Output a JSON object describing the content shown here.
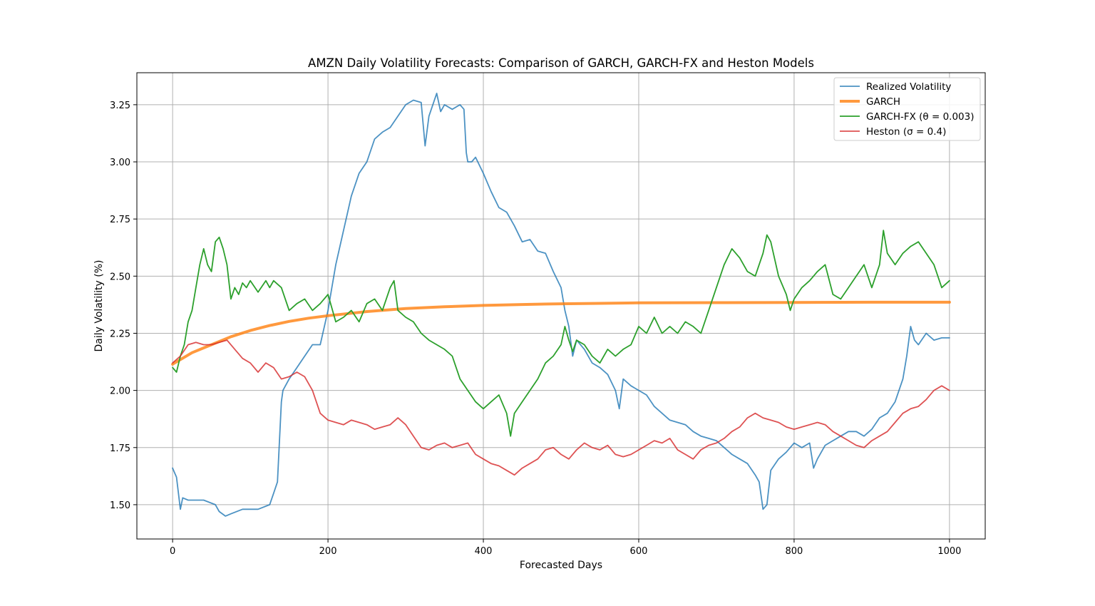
{
  "chart_data": {
    "type": "line",
    "title": "AMZN Daily Volatility Forecasts: Comparison of GARCH, GARCH-FX and Heston Models",
    "xlabel": "Forecasted Days",
    "ylabel": "Daily Volatility (%)",
    "xlim": [
      -46,
      1046
    ],
    "ylim": [
      1.35,
      3.39
    ],
    "xticks": [
      0,
      200,
      400,
      600,
      800,
      1000
    ],
    "xtick_labels": [
      "0",
      "200",
      "400",
      "600",
      "800",
      "1000"
    ],
    "yticks": [
      1.5,
      1.75,
      2.0,
      2.25,
      2.5,
      2.75,
      3.0,
      3.25
    ],
    "ytick_labels": [
      "1.50",
      "1.75",
      "2.00",
      "2.25",
      "2.50",
      "2.75",
      "3.00",
      "3.25"
    ],
    "grid": true,
    "legend_position": "top-right",
    "series": [
      {
        "name": "Realized Volatility",
        "color": "#1f77b4",
        "x": [
          0,
          5,
          10,
          13,
          20,
          40,
          55,
          60,
          68,
          75,
          90,
          110,
          125,
          130,
          135,
          140,
          142,
          150,
          160,
          170,
          180,
          190,
          200,
          205,
          210,
          220,
          230,
          240,
          250,
          260,
          270,
          280,
          290,
          300,
          310,
          320,
          325,
          330,
          340,
          345,
          350,
          360,
          370,
          375,
          378,
          380,
          385,
          390,
          400,
          410,
          420,
          430,
          440,
          450,
          460,
          470,
          480,
          490,
          500,
          505,
          510,
          515,
          520,
          530,
          540,
          550,
          560,
          570,
          575,
          580,
          590,
          600,
          610,
          620,
          630,
          640,
          650,
          660,
          670,
          680,
          690,
          700,
          710,
          720,
          730,
          740,
          750,
          755,
          760,
          765,
          770,
          780,
          790,
          800,
          810,
          820,
          825,
          830,
          840,
          850,
          860,
          870,
          880,
          890,
          900,
          910,
          920,
          930,
          940,
          945,
          950,
          955,
          960,
          970,
          980,
          990,
          1000
        ],
        "values": [
          1.66,
          1.62,
          1.48,
          1.53,
          1.52,
          1.52,
          1.5,
          1.47,
          1.45,
          1.46,
          1.48,
          1.48,
          1.5,
          1.55,
          1.6,
          1.95,
          2.0,
          2.05,
          2.1,
          2.15,
          2.2,
          2.2,
          2.35,
          2.45,
          2.55,
          2.7,
          2.85,
          2.95,
          3.0,
          3.1,
          3.13,
          3.15,
          3.2,
          3.25,
          3.27,
          3.26,
          3.07,
          3.2,
          3.3,
          3.22,
          3.25,
          3.23,
          3.25,
          3.23,
          3.04,
          3.0,
          3.0,
          3.02,
          2.95,
          2.87,
          2.8,
          2.78,
          2.72,
          2.65,
          2.66,
          2.61,
          2.6,
          2.52,
          2.45,
          2.35,
          2.28,
          2.15,
          2.22,
          2.18,
          2.12,
          2.1,
          2.07,
          2.0,
          1.92,
          2.05,
          2.02,
          2.0,
          1.98,
          1.93,
          1.9,
          1.87,
          1.86,
          1.85,
          1.82,
          1.8,
          1.79,
          1.78,
          1.75,
          1.72,
          1.7,
          1.68,
          1.63,
          1.6,
          1.48,
          1.5,
          1.65,
          1.7,
          1.73,
          1.77,
          1.75,
          1.77,
          1.66,
          1.7,
          1.76,
          1.78,
          1.8,
          1.82,
          1.82,
          1.8,
          1.83,
          1.88,
          1.9,
          1.95,
          2.05,
          2.15,
          2.28,
          2.22,
          2.2,
          2.25,
          2.22,
          2.23,
          2.23
        ]
      },
      {
        "name": "GARCH",
        "color": "#ff7f0e",
        "x": [
          0,
          25,
          50,
          75,
          100,
          125,
          150,
          175,
          200,
          250,
          300,
          350,
          400,
          450,
          500,
          550,
          600,
          700,
          800,
          900,
          1000
        ],
        "values": [
          2.115,
          2.165,
          2.2,
          2.235,
          2.262,
          2.284,
          2.302,
          2.316,
          2.327,
          2.345,
          2.358,
          2.366,
          2.372,
          2.376,
          2.379,
          2.381,
          2.383,
          2.384,
          2.385,
          2.386,
          2.386
        ]
      },
      {
        "name": "GARCH-FX (θ = 0.003)",
        "color": "#2ca02c",
        "x": [
          0,
          5,
          10,
          15,
          20,
          25,
          30,
          35,
          40,
          45,
          50,
          55,
          60,
          65,
          70,
          75,
          80,
          85,
          90,
          95,
          100,
          110,
          120,
          125,
          130,
          140,
          150,
          160,
          170,
          180,
          190,
          200,
          210,
          220,
          230,
          240,
          250,
          260,
          270,
          280,
          285,
          290,
          300,
          310,
          320,
          330,
          340,
          350,
          360,
          370,
          380,
          390,
          400,
          410,
          420,
          430,
          435,
          440,
          450,
          460,
          470,
          480,
          490,
          500,
          505,
          510,
          515,
          520,
          530,
          540,
          550,
          560,
          570,
          580,
          590,
          600,
          610,
          620,
          630,
          640,
          650,
          660,
          670,
          680,
          690,
          700,
          710,
          720,
          730,
          740,
          750,
          760,
          765,
          770,
          780,
          790,
          795,
          800,
          810,
          820,
          830,
          840,
          850,
          860,
          870,
          880,
          890,
          900,
          910,
          915,
          920,
          930,
          940,
          950,
          960,
          970,
          980,
          990,
          1000
        ],
        "values": [
          2.1,
          2.08,
          2.15,
          2.2,
          2.3,
          2.35,
          2.45,
          2.55,
          2.62,
          2.55,
          2.52,
          2.65,
          2.67,
          2.62,
          2.55,
          2.4,
          2.45,
          2.42,
          2.47,
          2.45,
          2.48,
          2.43,
          2.48,
          2.45,
          2.48,
          2.45,
          2.35,
          2.38,
          2.4,
          2.35,
          2.38,
          2.42,
          2.3,
          2.32,
          2.35,
          2.3,
          2.38,
          2.4,
          2.35,
          2.45,
          2.48,
          2.35,
          2.32,
          2.3,
          2.25,
          2.22,
          2.2,
          2.18,
          2.15,
          2.05,
          2.0,
          1.95,
          1.92,
          1.95,
          1.98,
          1.9,
          1.8,
          1.9,
          1.95,
          2.0,
          2.05,
          2.12,
          2.15,
          2.2,
          2.28,
          2.22,
          2.17,
          2.22,
          2.2,
          2.15,
          2.12,
          2.18,
          2.15,
          2.18,
          2.2,
          2.28,
          2.25,
          2.32,
          2.25,
          2.28,
          2.25,
          2.3,
          2.28,
          2.25,
          2.35,
          2.45,
          2.55,
          2.62,
          2.58,
          2.52,
          2.5,
          2.6,
          2.68,
          2.65,
          2.5,
          2.42,
          2.35,
          2.4,
          2.45,
          2.48,
          2.52,
          2.55,
          2.42,
          2.4,
          2.45,
          2.5,
          2.55,
          2.45,
          2.55,
          2.7,
          2.6,
          2.55,
          2.6,
          2.63,
          2.65,
          2.6,
          2.55,
          2.45,
          2.48
        ]
      },
      {
        "name": "Heston (σ = 0.4)",
        "color": "#d62728",
        "x": [
          0,
          10,
          20,
          30,
          40,
          50,
          60,
          70,
          80,
          90,
          100,
          110,
          120,
          130,
          140,
          150,
          160,
          170,
          180,
          190,
          200,
          210,
          220,
          230,
          240,
          250,
          260,
          270,
          280,
          290,
          300,
          310,
          320,
          330,
          340,
          350,
          360,
          370,
          380,
          390,
          400,
          410,
          420,
          430,
          440,
          450,
          460,
          470,
          480,
          490,
          500,
          510,
          520,
          530,
          540,
          550,
          560,
          570,
          580,
          590,
          600,
          610,
          620,
          630,
          640,
          650,
          660,
          670,
          680,
          690,
          700,
          710,
          720,
          730,
          740,
          750,
          760,
          770,
          780,
          790,
          800,
          810,
          820,
          830,
          840,
          850,
          860,
          870,
          880,
          890,
          900,
          910,
          920,
          930,
          940,
          950,
          960,
          970,
          980,
          990,
          1000
        ],
        "values": [
          2.12,
          2.15,
          2.2,
          2.21,
          2.2,
          2.2,
          2.21,
          2.22,
          2.18,
          2.14,
          2.12,
          2.08,
          2.12,
          2.1,
          2.05,
          2.06,
          2.08,
          2.06,
          2.0,
          1.9,
          1.87,
          1.86,
          1.85,
          1.87,
          1.86,
          1.85,
          1.83,
          1.84,
          1.85,
          1.88,
          1.85,
          1.8,
          1.75,
          1.74,
          1.76,
          1.77,
          1.75,
          1.76,
          1.77,
          1.72,
          1.7,
          1.68,
          1.67,
          1.65,
          1.63,
          1.66,
          1.68,
          1.7,
          1.74,
          1.75,
          1.72,
          1.7,
          1.74,
          1.77,
          1.75,
          1.74,
          1.76,
          1.72,
          1.71,
          1.72,
          1.74,
          1.76,
          1.78,
          1.77,
          1.79,
          1.74,
          1.72,
          1.7,
          1.74,
          1.76,
          1.77,
          1.79,
          1.82,
          1.84,
          1.88,
          1.9,
          1.88,
          1.87,
          1.86,
          1.84,
          1.83,
          1.84,
          1.85,
          1.86,
          1.85,
          1.82,
          1.8,
          1.78,
          1.76,
          1.75,
          1.78,
          1.8,
          1.82,
          1.86,
          1.9,
          1.92,
          1.93,
          1.96,
          2.0,
          2.02,
          2.0
        ]
      }
    ]
  }
}
